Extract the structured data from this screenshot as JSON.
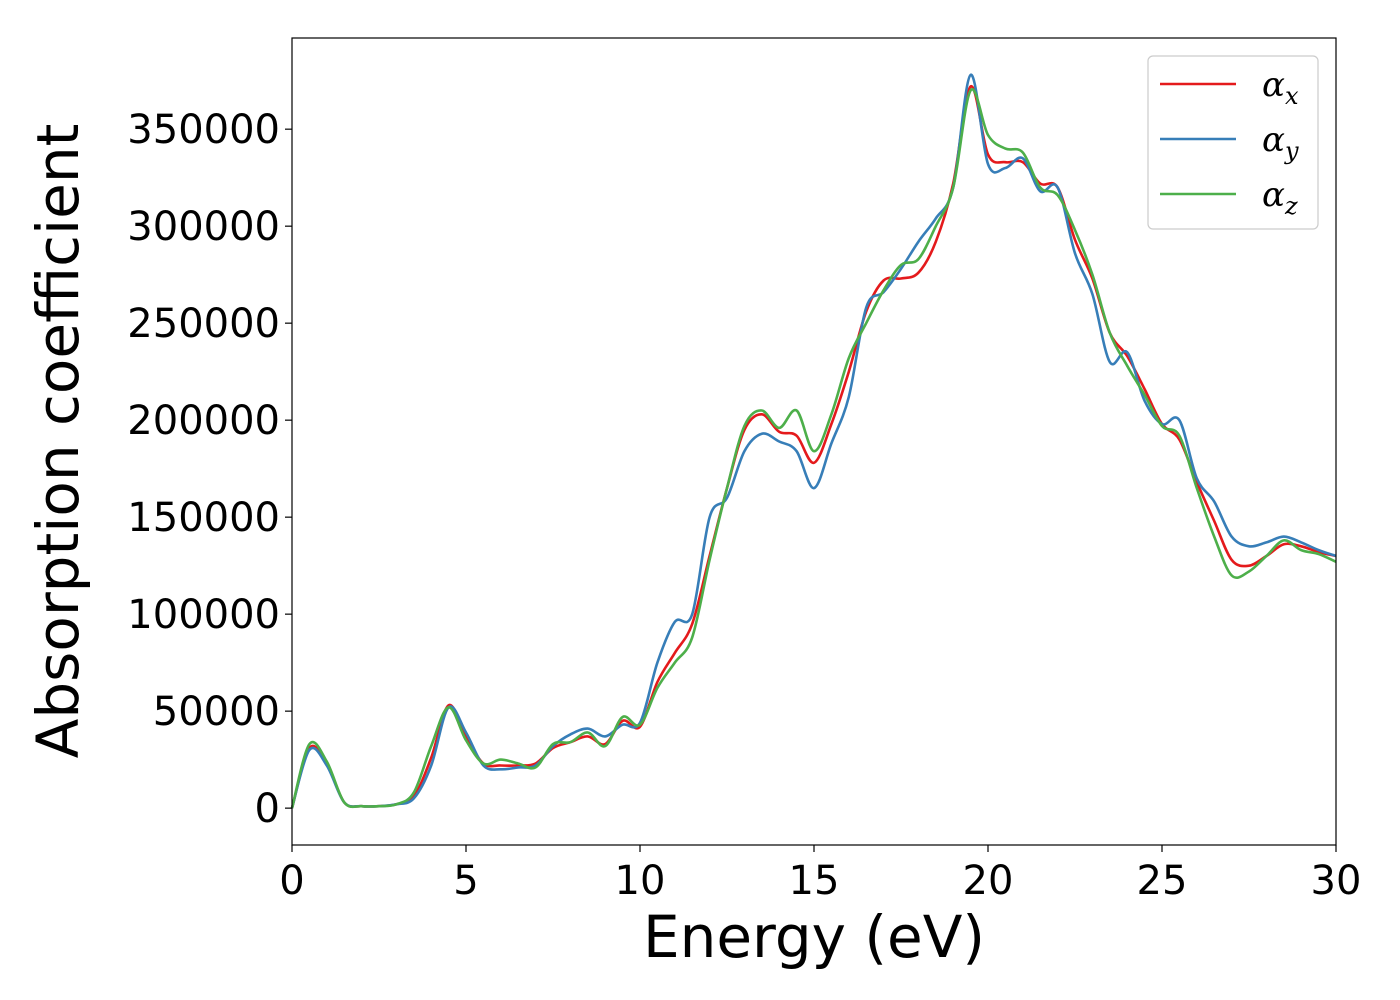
{
  "chart_data": {
    "type": "line",
    "xlabel": "Energy (eV)",
    "ylabel": "Absorption coefficient",
    "xlim": [
      0,
      30
    ],
    "ylim": [
      -19000,
      397000
    ],
    "xticks": [
      0,
      5,
      10,
      15,
      20,
      25,
      30
    ],
    "yticks": [
      0,
      50000,
      100000,
      150000,
      200000,
      250000,
      300000,
      350000
    ],
    "grid": false,
    "legend_position": "top-right",
    "x": [
      0,
      0.5,
      1,
      1.5,
      2,
      2.5,
      3,
      3.5,
      4,
      4.5,
      5,
      5.5,
      6,
      6.5,
      7,
      7.5,
      8,
      8.5,
      9,
      9.5,
      10,
      10.5,
      11,
      11.5,
      12,
      12.5,
      13,
      13.5,
      14,
      14.5,
      15,
      15.5,
      16,
      16.5,
      17,
      17.5,
      18,
      18.5,
      19,
      19.5,
      20,
      20.5,
      21,
      21.5,
      22,
      22.5,
      23,
      23.5,
      24,
      24.5,
      25,
      25.5,
      26,
      26.5,
      27,
      27.5,
      28,
      28.5,
      29,
      29.5,
      30
    ],
    "series": [
      {
        "name": "α",
        "subscript": "x",
        "color": "#e41a1c",
        "values": [
          0,
          31000,
          23000,
          3000,
          1000,
          1000,
          2000,
          6000,
          26000,
          53000,
          37000,
          23000,
          22000,
          22000,
          23000,
          31000,
          34000,
          37000,
          33000,
          45000,
          42000,
          65000,
          80000,
          95000,
          130000,
          165000,
          195000,
          203000,
          194000,
          192000,
          178000,
          198000,
          225000,
          256000,
          272000,
          273000,
          276000,
          292000,
          322000,
          372000,
          337000,
          333000,
          333000,
          322000,
          320000,
          293000,
          273000,
          245000,
          233000,
          216000,
          198000,
          190000,
          168000,
          148000,
          128000,
          125000,
          130000,
          136000,
          135000,
          132000,
          130000
        ]
      },
      {
        "name": "α",
        "subscript": "y",
        "color": "#377eb8",
        "values": [
          0,
          30000,
          22000,
          3000,
          1000,
          1000,
          2000,
          5000,
          22000,
          52000,
          39000,
          22000,
          20000,
          21000,
          22000,
          32000,
          38000,
          41000,
          37000,
          43000,
          44000,
          75000,
          96000,
          100000,
          150000,
          160000,
          184000,
          193000,
          189000,
          184000,
          165000,
          188000,
          212000,
          258000,
          266000,
          278000,
          292000,
          304000,
          320000,
          378000,
          332000,
          330000,
          335000,
          318000,
          320000,
          286000,
          265000,
          230000,
          235000,
          210000,
          198000,
          200000,
          170000,
          158000,
          140000,
          135000,
          137000,
          140000,
          137000,
          133000,
          130000
        ]
      },
      {
        "name": "α",
        "subscript": "z",
        "color": "#4daf4a",
        "values": [
          0,
          33000,
          24000,
          3000,
          1000,
          1000,
          2000,
          8000,
          32000,
          52000,
          35000,
          23000,
          25000,
          23000,
          21000,
          33000,
          34000,
          39000,
          32000,
          47000,
          43000,
          62000,
          75000,
          88000,
          128000,
          165000,
          197000,
          205000,
          196000,
          205000,
          184000,
          203000,
          232000,
          250000,
          267000,
          280000,
          283000,
          300000,
          320000,
          370000,
          347000,
          340000,
          338000,
          320000,
          316000,
          298000,
          275000,
          245000,
          228000,
          213000,
          197000,
          192000,
          165000,
          140000,
          120000,
          122000,
          130000,
          138000,
          133000,
          131000,
          127000
        ]
      }
    ]
  }
}
